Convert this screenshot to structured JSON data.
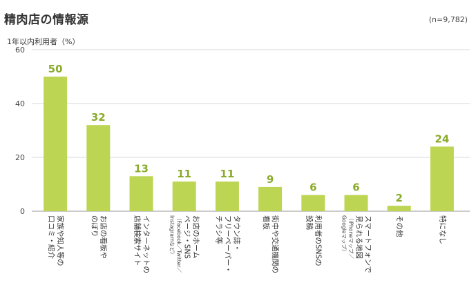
{
  "header": {
    "title": "精肉店の情報源",
    "sample_note": "(n=9,782)"
  },
  "chart_data": {
    "type": "bar",
    "title": "精肉店の情報源",
    "ylabel": "1年以内利用者（%）",
    "xlabel": "",
    "ylim": [
      0,
      60
    ],
    "yticks": [
      0,
      20,
      40,
      60
    ],
    "grid": true,
    "categories": [
      {
        "label": [
          "家族や知人等の",
          "口コミ・紹介"
        ],
        "sub": []
      },
      {
        "label": [
          "お店の看板や",
          "のぼり"
        ],
        "sub": []
      },
      {
        "label": [
          "インターネットの",
          "店舗検索サイト"
        ],
        "sub": []
      },
      {
        "label": [
          "お店のホーム",
          "ページ・SNS"
        ],
        "sub": [
          "（Facebook／Twitter／",
          "Instagramなど）"
        ]
      },
      {
        "label": [
          "タウン誌・",
          "フリーペーパー・",
          "チラシ等"
        ],
        "sub": []
      },
      {
        "label": [
          "街中や交通機関の",
          "看板"
        ],
        "sub": []
      },
      {
        "label": [
          "利用者のSNSの",
          "投稿"
        ],
        "sub": []
      },
      {
        "label": [
          "スマートフォンで",
          "見られる地図"
        ],
        "sub": [
          "（iPhoneマップ／",
          "Googleマップ）"
        ]
      },
      {
        "label": [
          "その他"
        ],
        "sub": []
      },
      {
        "label": [
          "特になし"
        ],
        "sub": []
      }
    ],
    "values": [
      50,
      32,
      13,
      11,
      11,
      9,
      6,
      6,
      2,
      24
    ],
    "colors": {
      "bar": "#bcd552",
      "value_label": "#8aab2b",
      "grid": "#d9d9d9",
      "axis": "#999999"
    }
  }
}
